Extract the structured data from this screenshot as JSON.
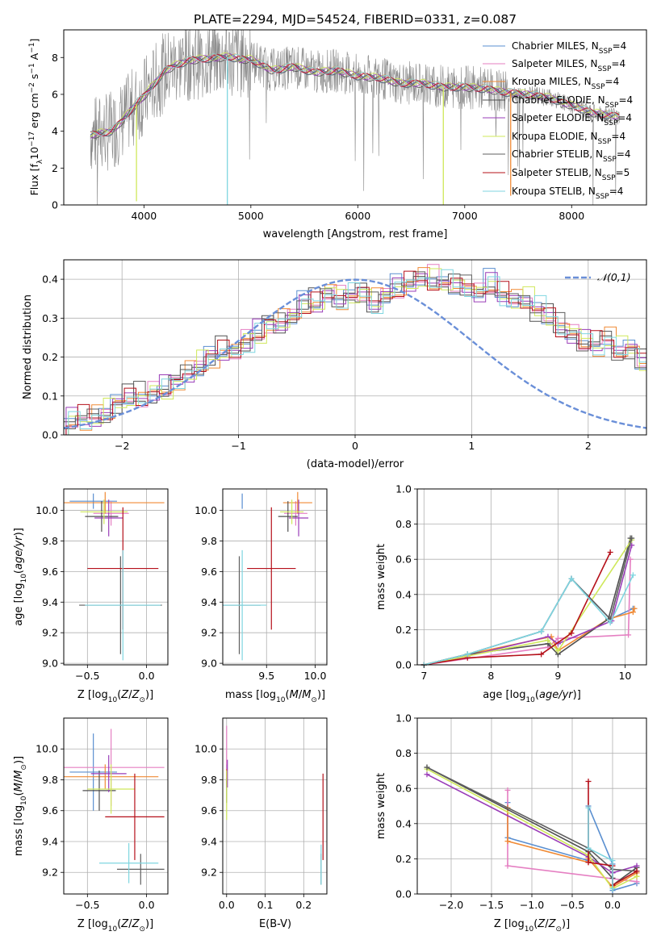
{
  "figure_title": "PLATE=2294, MJD=54524, FIBERID=0331, z=0.087",
  "colors": {
    "grid": "#b0b0b0",
    "gauss": "#6a8fd8",
    "series": [
      "#5a8fd0",
      "#e57fc2",
      "#f08a34",
      "#505050",
      "#9a3db8",
      "#cfe85a",
      "#5f5f5f",
      "#b5101a",
      "#7fd6e0"
    ]
  },
  "chart_data": [
    {
      "id": "spectrum",
      "type": "line",
      "title": "PLATE=2294, MJD=54524, FIBERID=0331, z=0.087",
      "xlabel": "wavelength [Angstrom, rest frame]",
      "ylabel": "Flux [f_λ 10^-17 erg cm^-2 s^-1 A^-1]",
      "xlim": [
        3250,
        8700
      ],
      "ylim": [
        0,
        9.5
      ],
      "xticks": [
        4000,
        5000,
        6000,
        7000,
        8000
      ],
      "yticks": [
        0,
        2,
        4,
        6,
        8
      ],
      "grid": false,
      "legend_position": "top-right",
      "legend": [
        {
          "main": "Chabrier MILES, N",
          "sub": "SSP",
          "tail": "=4",
          "color": "#5a8fd0"
        },
        {
          "main": "Salpeter MILES, N",
          "sub": "SSP",
          "tail": "=4",
          "color": "#e57fc2"
        },
        {
          "main": "Kroupa MILES, N",
          "sub": "SSP",
          "tail": "=4",
          "color": "#f08a34"
        },
        {
          "main": "Chabrier ELODIE, N",
          "sub": "SSP",
          "tail": "=4",
          "color": "#505050"
        },
        {
          "main": "Salpeter ELODIE, N",
          "sub": "SSP",
          "tail": "=4",
          "color": "#9a3db8"
        },
        {
          "main": "Kroupa ELODIE, N",
          "sub": "SSP",
          "tail": "=4",
          "color": "#cfe85a"
        },
        {
          "main": "Chabrier STELIB, N",
          "sub": "SSP",
          "tail": "=4",
          "color": "#5f5f5f"
        },
        {
          "main": "Salpeter STELIB, N",
          "sub": "SSP",
          "tail": "=5",
          "color": "#b5101a"
        },
        {
          "main": "Kroupa STELIB, N",
          "sub": "SSP",
          "tail": "=4",
          "color": "#7fd6e0"
        }
      ],
      "data_series": {
        "name": "data",
        "color": "#888888",
        "x_range": [
          3500,
          8450
        ]
      },
      "continuum_knots": {
        "x": [
          3500,
          3600,
          3700,
          3800,
          3900,
          3950,
          4000,
          4100,
          4200,
          4300,
          4400,
          4500,
          4600,
          4700,
          4800,
          4900,
          5000,
          5200,
          5400,
          5600,
          5800,
          6000,
          6200,
          6400,
          6600,
          6800,
          7000,
          7200,
          7400,
          7600,
          7800,
          8000,
          8200,
          8450
        ],
        "y": [
          3.8,
          3.9,
          4.0,
          4.6,
          5.3,
          5.6,
          5.9,
          6.6,
          7.3,
          7.6,
          7.8,
          7.9,
          7.95,
          8.0,
          8.05,
          7.9,
          7.9,
          7.3,
          7.5,
          7.2,
          7.3,
          7.0,
          6.9,
          6.6,
          6.6,
          6.4,
          6.4,
          6.3,
          6.1,
          6.0,
          5.8,
          5.4,
          5.0,
          4.8
        ]
      },
      "model_dips": [
        {
          "x": 4780,
          "to": 0.0,
          "color": "#7fd6e0"
        },
        {
          "x": 3930,
          "to": 0.2,
          "color": "#cfe85a"
        },
        {
          "x": 6800,
          "to": 0.0,
          "color": "#cfe85a"
        },
        {
          "x": 7430,
          "to": 0.5,
          "color": "#f08a34"
        }
      ]
    },
    {
      "id": "residual_hist",
      "type": "histogram",
      "xlabel": "(data-model)/error",
      "ylabel": "Normed distribution",
      "xlim": [
        -2.5,
        2.5
      ],
      "ylim": [
        0,
        0.45
      ],
      "xticks": [
        -2,
        -1,
        0,
        1,
        2
      ],
      "xtick_labels": [
        "−2",
        "−1",
        "0",
        "1",
        "2"
      ],
      "yticks": [
        0,
        0.1,
        0.2,
        0.3,
        0.4
      ],
      "ytick_labels": [
        "0.0",
        "0.1",
        "0.2",
        "0.3",
        "0.4"
      ],
      "grid": true,
      "legend_position": "top-right",
      "gaussian_label": "𝒩(0,1)",
      "gaussian": {
        "mean": 0,
        "sigma": 1
      },
      "bin_width": 0.1,
      "base_heights": [
        0.03,
        0.03,
        0.04,
        0.05,
        0.07,
        0.09,
        0.09,
        0.1,
        0.11,
        0.13,
        0.15,
        0.17,
        0.19,
        0.21,
        0.21,
        0.23,
        0.25,
        0.28,
        0.28,
        0.3,
        0.33,
        0.33,
        0.36,
        0.34,
        0.35,
        0.36,
        0.33,
        0.35,
        0.37,
        0.38,
        0.4,
        0.39,
        0.38,
        0.38,
        0.37,
        0.36,
        0.38,
        0.35,
        0.34,
        0.34,
        0.31,
        0.3,
        0.27,
        0.25,
        0.23,
        0.22,
        0.24,
        0.21,
        0.21,
        0.18,
        0.19,
        0.17,
        0.15,
        0.14,
        0.13,
        0.11,
        0.11,
        0.1,
        0.09,
        0.08,
        0.07,
        0.07,
        0.05,
        0.06,
        0.05,
        0.05,
        0.04,
        0.04,
        0.03,
        0.03
      ]
    },
    {
      "id": "age_vs_Z",
      "type": "errorbar",
      "xlabel": "Z [log10(Z/Z⊙)]",
      "ylabel": "age [log10(age/yr)]",
      "xlim": [
        -0.7,
        0.18
      ],
      "ylim": [
        8.99,
        10.14
      ],
      "xticks": [
        -0.5,
        0.0
      ],
      "xtick_labels": [
        "−0.5",
        "0.0"
      ],
      "yticks": [
        9.0,
        9.2,
        9.4,
        9.6,
        9.8,
        10.0
      ],
      "ytick_labels": [
        "9.0",
        "9.2",
        "9.4",
        "9.6",
        "9.8",
        "10.0"
      ],
      "grid": true,
      "points": [
        {
          "x": -0.45,
          "xerr": 0.2,
          "y": 10.06,
          "yerr": 0.05,
          "series": 0
        },
        {
          "x": -0.3,
          "xerr": 0.15,
          "y": 9.98,
          "yerr": 0.08,
          "series": 1
        },
        {
          "x": -0.35,
          "xerr": 0.5,
          "y": 10.05,
          "yerr": 0.07,
          "series": 2
        },
        {
          "x": -0.38,
          "xerr": 0.14,
          "y": 9.96,
          "yerr": 0.1,
          "series": 3
        },
        {
          "x": -0.32,
          "xerr": 0.12,
          "y": 9.95,
          "yerr": 0.12,
          "series": 4
        },
        {
          "x": -0.36,
          "xerr": 0.2,
          "y": 9.99,
          "yerr": 0.08,
          "series": 5
        },
        {
          "x": -0.22,
          "xerr": 0.35,
          "y": 9.38,
          "yerr": 0.32,
          "series": 6
        },
        {
          "x": -0.2,
          "xerr": 0.3,
          "y": 9.62,
          "yerr": 0.4,
          "series": 7
        },
        {
          "x": -0.2,
          "xerr": 0.32,
          "y": 9.38,
          "yerr": 0.36,
          "series": 8
        }
      ]
    },
    {
      "id": "age_vs_mass",
      "type": "errorbar",
      "xlabel": "mass [log10(M/M⊙)]",
      "xlim": [
        9.05,
        10.12
      ],
      "ylim": [
        8.99,
        10.14
      ],
      "xticks": [
        9.5,
        10.0
      ],
      "xtick_labels": [
        "9.5",
        "10.0"
      ],
      "yticks": [
        9.0,
        9.2,
        9.4,
        9.6,
        9.8,
        10.0
      ],
      "ytick_labels": [
        "9.0",
        "9.2",
        "9.4",
        "9.6",
        "9.8",
        "10.0"
      ],
      "grid": true,
      "points": [
        {
          "x": 9.25,
          "xerr": 0.0,
          "y": 10.06,
          "yerr": 0.05,
          "series": 0
        },
        {
          "x": 9.8,
          "xerr": 0.12,
          "y": 9.98,
          "yerr": 0.08,
          "series": 1
        },
        {
          "x": 9.82,
          "xerr": 0.15,
          "y": 10.05,
          "yerr": 0.07,
          "series": 2
        },
        {
          "x": 9.72,
          "xerr": 0.1,
          "y": 9.96,
          "yerr": 0.1,
          "series": 3
        },
        {
          "x": 9.83,
          "xerr": 0.1,
          "y": 9.95,
          "yerr": 0.12,
          "series": 4
        },
        {
          "x": 9.76,
          "xerr": 0.12,
          "y": 9.99,
          "yerr": 0.08,
          "series": 5
        },
        {
          "x": 9.22,
          "xerr": 0.22,
          "y": 9.38,
          "yerr": 0.32,
          "series": 6
        },
        {
          "x": 9.55,
          "xerr": 0.25,
          "y": 9.62,
          "yerr": 0.4,
          "series": 7
        },
        {
          "x": 9.25,
          "xerr": 0.25,
          "y": 9.38,
          "yerr": 0.36,
          "series": 8
        }
      ]
    },
    {
      "id": "weight_vs_age",
      "type": "line",
      "xlabel": "age [log10(age/yr)]",
      "ylabel": "mass weight",
      "xlim": [
        6.9,
        10.32
      ],
      "ylim": [
        0,
        1
      ],
      "xticks": [
        7,
        8,
        9,
        10
      ],
      "xtick_labels": [
        "7",
        "8",
        "9",
        "10"
      ],
      "yticks": [
        0,
        0.2,
        0.4,
        0.6,
        0.8,
        1.0
      ],
      "ytick_labels": [
        "0.0",
        "0.2",
        "0.4",
        "0.6",
        "0.8",
        "1.0"
      ],
      "grid": true,
      "series": [
        {
          "x": [
            7.0,
            7.65,
            8.75,
            9.2,
            9.78,
            10.12
          ],
          "y": [
            0.0,
            0.06,
            0.19,
            0.49,
            0.26,
            0.32
          ],
          "series": 0
        },
        {
          "x": [
            7.0,
            8.85,
            9.0,
            10.05,
            10.08
          ],
          "y": [
            0.0,
            0.1,
            0.15,
            0.17,
            0.6
          ],
          "series": 1
        },
        {
          "x": [
            7.0,
            7.65,
            8.9,
            9.0,
            9.75,
            10.12,
            10.14
          ],
          "y": [
            0.0,
            0.06,
            0.16,
            0.08,
            0.26,
            0.3,
            0.32
          ],
          "series": 2
        },
        {
          "x": [
            7.0,
            7.65,
            8.85,
            9.0,
            9.75,
            10.08
          ],
          "y": [
            0.0,
            0.06,
            0.12,
            0.06,
            0.26,
            0.72
          ],
          "series": 3
        },
        {
          "x": [
            7.0,
            7.65,
            8.85,
            9.0,
            9.8,
            10.1
          ],
          "y": [
            0.0,
            0.05,
            0.16,
            0.12,
            0.25,
            0.68
          ],
          "series": 4
        },
        {
          "x": [
            7.0,
            7.65,
            8.85,
            9.0,
            10.1
          ],
          "y": [
            0.0,
            0.05,
            0.14,
            0.08,
            0.71
          ],
          "series": 5
        },
        {
          "x": [
            7.0,
            7.65,
            8.75,
            9.2,
            9.78,
            10.1
          ],
          "y": [
            0.0,
            0.06,
            0.19,
            0.49,
            0.26,
            0.72
          ],
          "series": 6
        },
        {
          "x": [
            7.0,
            7.65,
            8.75,
            9.2,
            9.78
          ],
          "y": [
            0.0,
            0.04,
            0.06,
            0.18,
            0.64
          ],
          "series": 7
        },
        {
          "x": [
            7.0,
            7.65,
            8.75,
            9.2,
            9.78,
            10.12
          ],
          "y": [
            0.0,
            0.06,
            0.19,
            0.49,
            0.24,
            0.51
          ],
          "series": 8
        }
      ]
    },
    {
      "id": "mass_vs_Z",
      "type": "errorbar",
      "xlabel": "Z [log10(Z/Z⊙)]",
      "ylabel": "mass [log10(M/M⊙)]",
      "xlim": [
        -0.7,
        0.18
      ],
      "ylim": [
        9.06,
        10.2
      ],
      "xticks": [
        -0.5,
        0.0
      ],
      "xtick_labels": [
        "−0.5",
        "0.0"
      ],
      "yticks": [
        9.2,
        9.4,
        9.6,
        9.8,
        10.0
      ],
      "ytick_labels": [
        "9.2",
        "9.4",
        "9.6",
        "9.8",
        "10.0"
      ],
      "grid": true,
      "points": [
        {
          "x": -0.45,
          "xerr": 0.2,
          "y": 9.85,
          "yerr": 0.25,
          "series": 0
        },
        {
          "x": -0.3,
          "xerr": 0.45,
          "y": 9.88,
          "yerr": 0.25,
          "series": 1
        },
        {
          "x": -0.35,
          "xerr": 0.45,
          "y": 9.82,
          "yerr": 0.08,
          "series": 2
        },
        {
          "x": -0.4,
          "xerr": 0.14,
          "y": 9.73,
          "yerr": 0.13,
          "series": 3
        },
        {
          "x": -0.32,
          "xerr": 0.15,
          "y": 9.84,
          "yerr": 0.12,
          "series": 4
        },
        {
          "x": -0.3,
          "xerr": 0.2,
          "y": 9.74,
          "yerr": 0.16,
          "series": 5
        },
        {
          "x": -0.05,
          "xerr": 0.2,
          "y": 9.22,
          "yerr": 0.1,
          "series": 6
        },
        {
          "x": -0.1,
          "xerr": 0.25,
          "y": 9.56,
          "yerr": 0.28,
          "series": 7
        },
        {
          "x": -0.15,
          "xerr": 0.25,
          "y": 9.26,
          "yerr": 0.13,
          "series": 8
        }
      ]
    },
    {
      "id": "mass_vs_ebv",
      "type": "errorbar",
      "xlabel": "E(B-V)",
      "xlim": [
        -0.01,
        0.26
      ],
      "ylim": [
        9.06,
        10.2
      ],
      "xticks": [
        0.0,
        0.1,
        0.2
      ],
      "xtick_labels": [
        "0.0",
        "0.1",
        "0.2"
      ],
      "yticks": [
        9.2,
        9.4,
        9.6,
        9.8,
        10.0
      ],
      "ytick_labels": [
        "9.2",
        "9.4",
        "9.6",
        "9.8",
        "10.0"
      ],
      "grid": true,
      "points": [
        {
          "x": 0.0,
          "xerr": 0.0,
          "y": 9.85,
          "yerr": 0.05,
          "series": 0
        },
        {
          "x": 0.0,
          "xerr": 0.0,
          "y": 9.98,
          "yerr": 0.17,
          "series": 1
        },
        {
          "x": 0.0,
          "xerr": 0.0,
          "y": 9.82,
          "yerr": 0.05,
          "series": 2
        },
        {
          "x": 0.0,
          "xerr": 0.0,
          "y": 9.73,
          "yerr": 0.08,
          "series": 3
        },
        {
          "x": 0.002,
          "xerr": 0.0,
          "y": 9.84,
          "yerr": 0.09,
          "series": 4
        },
        {
          "x": 0.0,
          "xerr": 0.0,
          "y": 9.7,
          "yerr": 0.16,
          "series": 5
        },
        {
          "x": 0.245,
          "xerr": 0.0,
          "y": 9.22,
          "yerr": 0.1,
          "series": 6
        },
        {
          "x": 0.25,
          "xerr": 0.0,
          "y": 9.56,
          "yerr": 0.28,
          "series": 7
        },
        {
          "x": 0.245,
          "xerr": 0.0,
          "y": 9.25,
          "yerr": 0.13,
          "series": 8
        }
      ]
    },
    {
      "id": "weight_vs_Z",
      "type": "line",
      "xlabel": "Z [log10(Z/Z⊙)]",
      "ylabel": "mass weight",
      "xlim": [
        -2.42,
        0.42
      ],
      "ylim": [
        0,
        1
      ],
      "xticks": [
        -2.0,
        -1.5,
        -1.0,
        -0.5,
        0.0
      ],
      "xtick_labels": [
        "−2.0",
        "−1.5",
        "−1.0",
        "−0.5",
        "0.0"
      ],
      "yticks": [
        0,
        0.2,
        0.4,
        0.6,
        0.8,
        1.0
      ],
      "ytick_labels": [
        "0.0",
        "0.2",
        "0.4",
        "0.6",
        "0.8",
        "1.0"
      ],
      "grid": true,
      "series": [
        {
          "x": [
            -1.3,
            -1.3,
            -0.3,
            -0.3,
            0.0,
            0.0,
            0.3
          ],
          "y": [
            0.52,
            0.32,
            0.19,
            0.5,
            0.17,
            0.02,
            0.06
          ],
          "series": 0
        },
        {
          "x": [
            -1.3,
            -1.3,
            0.3
          ],
          "y": [
            0.59,
            0.16,
            0.07
          ],
          "series": 1
        },
        {
          "x": [
            -1.3,
            -1.3,
            -0.3,
            -0.3,
            0.0,
            0.3,
            0.3
          ],
          "y": [
            0.49,
            0.3,
            0.18,
            0.2,
            0.04,
            0.12,
            0.1
          ],
          "series": 2
        },
        {
          "x": [
            -2.3,
            -0.3,
            0.0,
            0.0,
            0.3
          ],
          "y": [
            0.72,
            0.24,
            0.09,
            0.05,
            0.15
          ],
          "series": 3
        },
        {
          "x": [
            -2.3,
            -0.3,
            0.0,
            0.3
          ],
          "y": [
            0.68,
            0.21,
            0.12,
            0.16
          ],
          "series": 4
        },
        {
          "x": [
            -2.3,
            -0.3,
            0.0,
            0.3
          ],
          "y": [
            0.71,
            0.22,
            0.03,
            0.1
          ],
          "series": 5
        },
        {
          "x": [
            -2.3,
            -0.3,
            0.0,
            0.3
          ],
          "y": [
            0.72,
            0.26,
            0.14,
            0.13
          ],
          "series": 6
        },
        {
          "x": [
            -0.3,
            -0.3,
            0.0,
            0.0,
            0.3
          ],
          "y": [
            0.64,
            0.18,
            0.16,
            0.05,
            0.13
          ],
          "series": 7
        },
        {
          "x": [
            -0.3,
            -0.3,
            0.0,
            0.0
          ],
          "y": [
            0.49,
            0.26,
            0.19,
            0.03
          ],
          "series": 8
        }
      ]
    }
  ]
}
